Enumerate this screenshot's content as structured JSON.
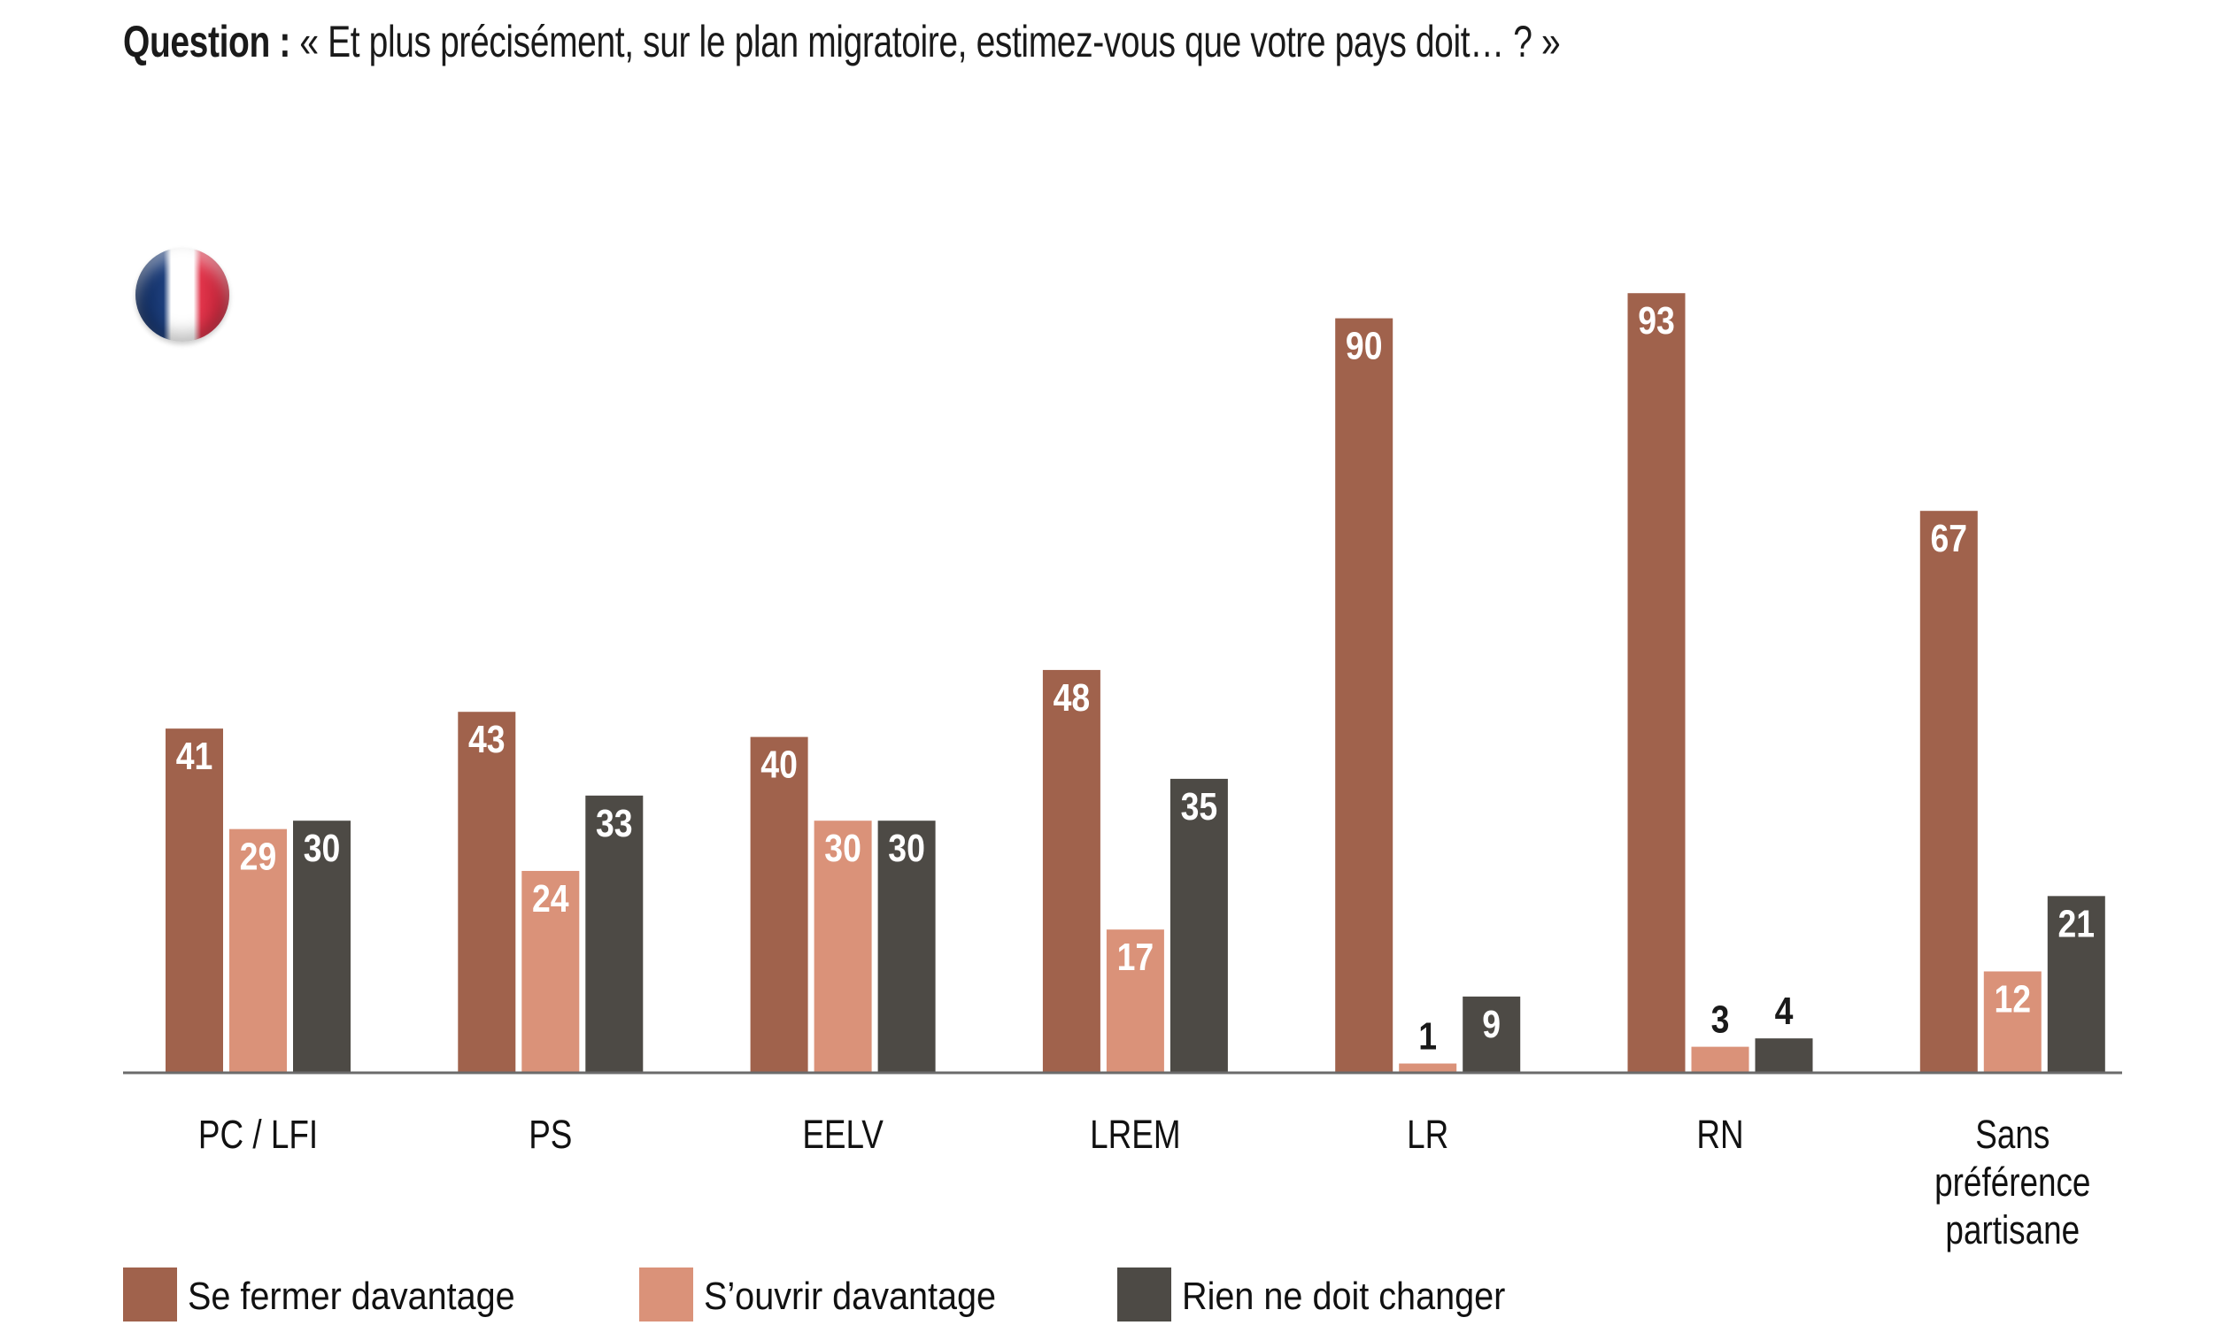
{
  "header": {
    "question_label": "Question :",
    "question_text": "« Et plus précisément, sur le plan migratoire, estimez-vous que votre pays doit… ? »"
  },
  "flag_icon": "france-flag",
  "chart_data": {
    "type": "bar",
    "title": "Question : « Et plus précisément, sur le plan migratoire, estimez-vous que votre pays doit… ? »",
    "categories": [
      [
        "PC / LFI"
      ],
      [
        "PS"
      ],
      [
        "EELV"
      ],
      [
        "LREM"
      ],
      [
        "LR"
      ],
      [
        "RN"
      ],
      [
        "Sans",
        "préférence",
        "partisane"
      ]
    ],
    "series": [
      {
        "name": "Se fermer davantage",
        "color": "#A0624C",
        "values": [
          41,
          43,
          40,
          48,
          90,
          93,
          67
        ]
      },
      {
        "name": "S’ouvrir davantage",
        "color": "#DA9279",
        "values": [
          29,
          24,
          30,
          17,
          1,
          3,
          12
        ]
      },
      {
        "name": "Rien ne doit changer",
        "color": "#4D4A45",
        "values": [
          30,
          33,
          30,
          35,
          9,
          4,
          21
        ]
      }
    ],
    "ylim": [
      0,
      100
    ],
    "grid": false,
    "legend_position": "bottom-left",
    "xlabel": "",
    "ylabel": ""
  }
}
